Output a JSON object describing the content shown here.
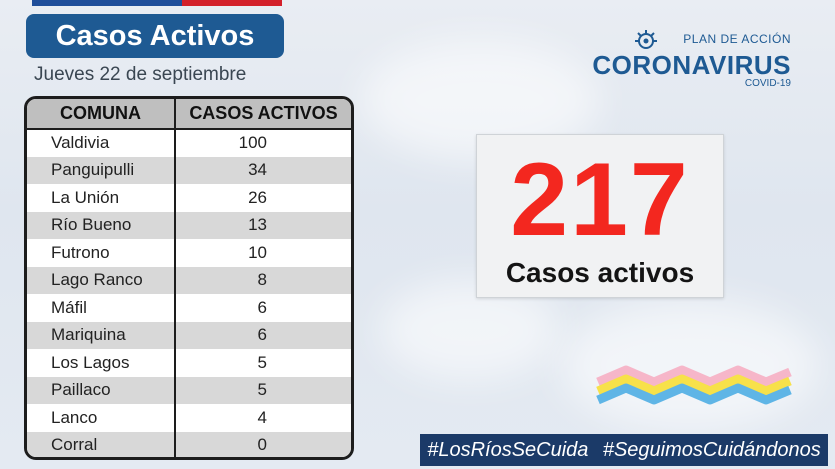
{
  "header": {
    "title": "Casos Activos",
    "date": "Jueves 22 de septiembre"
  },
  "table": {
    "headers": [
      "COMUNA",
      "CASOS ACTIVOS"
    ],
    "rows": [
      {
        "comuna": "Valdivia",
        "casos": "100"
      },
      {
        "comuna": "Panguipulli",
        "casos": "34"
      },
      {
        "comuna": "La Unión",
        "casos": "26"
      },
      {
        "comuna": "Río Bueno",
        "casos": "13"
      },
      {
        "comuna": "Futrono",
        "casos": "10"
      },
      {
        "comuna": "Lago Ranco",
        "casos": "8"
      },
      {
        "comuna": "Máfil",
        "casos": "6"
      },
      {
        "comuna": "Mariquina",
        "casos": "6"
      },
      {
        "comuna": "Los Lagos",
        "casos": "5"
      },
      {
        "comuna": "Paillaco",
        "casos": "5"
      },
      {
        "comuna": "Lanco",
        "casos": "4"
      },
      {
        "comuna": "Corral",
        "casos": "0"
      }
    ]
  },
  "logo": {
    "plan": "PLAN DE ACCIÓN",
    "name": "CORONAVIRUS",
    "sub": "COVID-19",
    "icon": "virus-icon"
  },
  "summary": {
    "total": "217",
    "label": "Casos activos"
  },
  "footer": {
    "hashtag_1": "#LosRíosSeCuida",
    "hashtag_2": "#SeguimosCuidándonos"
  },
  "colors": {
    "brand_blue": "#1e5a93",
    "accent_red": "#f3271f",
    "footer_bg": "#1b3a68"
  }
}
